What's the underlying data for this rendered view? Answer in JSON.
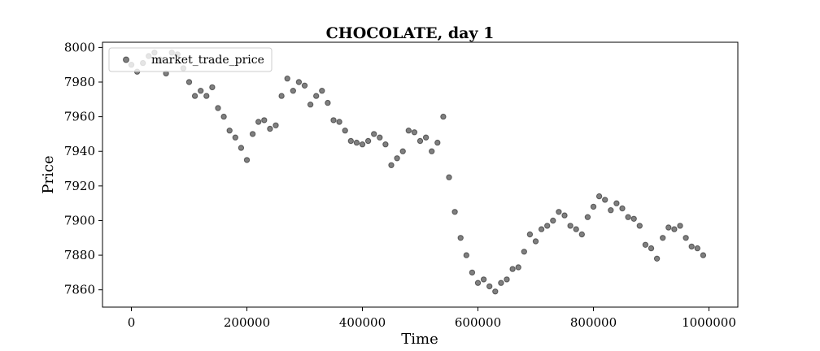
{
  "chart_data": {
    "type": "scatter",
    "title": "CHOCOLATE, day 1",
    "xlabel": "Time",
    "ylabel": "Price",
    "xlim": [
      -50000,
      1050000
    ],
    "ylim": [
      7850,
      8003
    ],
    "xticks": [
      0,
      200000,
      400000,
      600000,
      800000,
      1000000
    ],
    "xtick_labels": [
      "0",
      "200000",
      "400000",
      "600000",
      "800000",
      "1000000"
    ],
    "yticks": [
      7860,
      7880,
      7900,
      7920,
      7940,
      7960,
      7980,
      8000
    ],
    "ytick_labels": [
      "7860",
      "7880",
      "7900",
      "7920",
      "7940",
      "7960",
      "7980",
      "8000"
    ],
    "grid": false,
    "legend_position": "top-left",
    "series": [
      {
        "name": "market_trade_price",
        "color": "#000000",
        "alpha": 0.5,
        "points": [
          [
            0,
            7990
          ],
          [
            10000,
            7986
          ],
          [
            20000,
            7991
          ],
          [
            30000,
            7995
          ],
          [
            40000,
            7997
          ],
          [
            50000,
            7993
          ],
          [
            60000,
            7985
          ],
          [
            70000,
            7997
          ],
          [
            80000,
            7996
          ],
          [
            90000,
            7988
          ],
          [
            100000,
            7980
          ],
          [
            110000,
            7972
          ],
          [
            120000,
            7975
          ],
          [
            130000,
            7972
          ],
          [
            140000,
            7977
          ],
          [
            150000,
            7965
          ],
          [
            160000,
            7960
          ],
          [
            170000,
            7952
          ],
          [
            180000,
            7948
          ],
          [
            190000,
            7942
          ],
          [
            200000,
            7935
          ],
          [
            210000,
            7950
          ],
          [
            220000,
            7957
          ],
          [
            230000,
            7958
          ],
          [
            240000,
            7953
          ],
          [
            250000,
            7955
          ],
          [
            260000,
            7972
          ],
          [
            270000,
            7982
          ],
          [
            280000,
            7975
          ],
          [
            290000,
            7980
          ],
          [
            300000,
            7978
          ],
          [
            310000,
            7967
          ],
          [
            320000,
            7972
          ],
          [
            330000,
            7975
          ],
          [
            340000,
            7968
          ],
          [
            350000,
            7958
          ],
          [
            360000,
            7957
          ],
          [
            370000,
            7952
          ],
          [
            380000,
            7946
          ],
          [
            390000,
            7945
          ],
          [
            400000,
            7944
          ],
          [
            410000,
            7946
          ],
          [
            420000,
            7950
          ],
          [
            430000,
            7948
          ],
          [
            440000,
            7944
          ],
          [
            450000,
            7932
          ],
          [
            460000,
            7936
          ],
          [
            470000,
            7940
          ],
          [
            480000,
            7952
          ],
          [
            490000,
            7951
          ],
          [
            500000,
            7946
          ],
          [
            510000,
            7948
          ],
          [
            520000,
            7940
          ],
          [
            530000,
            7945
          ],
          [
            540000,
            7960
          ],
          [
            550000,
            7925
          ],
          [
            560000,
            7905
          ],
          [
            570000,
            7890
          ],
          [
            580000,
            7880
          ],
          [
            590000,
            7870
          ],
          [
            600000,
            7864
          ],
          [
            610000,
            7866
          ],
          [
            620000,
            7862
          ],
          [
            630000,
            7859
          ],
          [
            640000,
            7864
          ],
          [
            650000,
            7866
          ],
          [
            660000,
            7872
          ],
          [
            670000,
            7873
          ],
          [
            680000,
            7882
          ],
          [
            690000,
            7892
          ],
          [
            700000,
            7888
          ],
          [
            710000,
            7895
          ],
          [
            720000,
            7897
          ],
          [
            730000,
            7900
          ],
          [
            740000,
            7905
          ],
          [
            750000,
            7903
          ],
          [
            760000,
            7897
          ],
          [
            770000,
            7895
          ],
          [
            780000,
            7892
          ],
          [
            790000,
            7902
          ],
          [
            800000,
            7908
          ],
          [
            810000,
            7914
          ],
          [
            820000,
            7912
          ],
          [
            830000,
            7906
          ],
          [
            840000,
            7910
          ],
          [
            850000,
            7907
          ],
          [
            860000,
            7902
          ],
          [
            870000,
            7901
          ],
          [
            880000,
            7897
          ],
          [
            890000,
            7886
          ],
          [
            900000,
            7884
          ],
          [
            910000,
            7878
          ],
          [
            920000,
            7890
          ],
          [
            930000,
            7896
          ],
          [
            940000,
            7895
          ],
          [
            950000,
            7897
          ],
          [
            960000,
            7890
          ],
          [
            970000,
            7885
          ],
          [
            980000,
            7884
          ],
          [
            990000,
            7880
          ]
        ]
      }
    ]
  }
}
